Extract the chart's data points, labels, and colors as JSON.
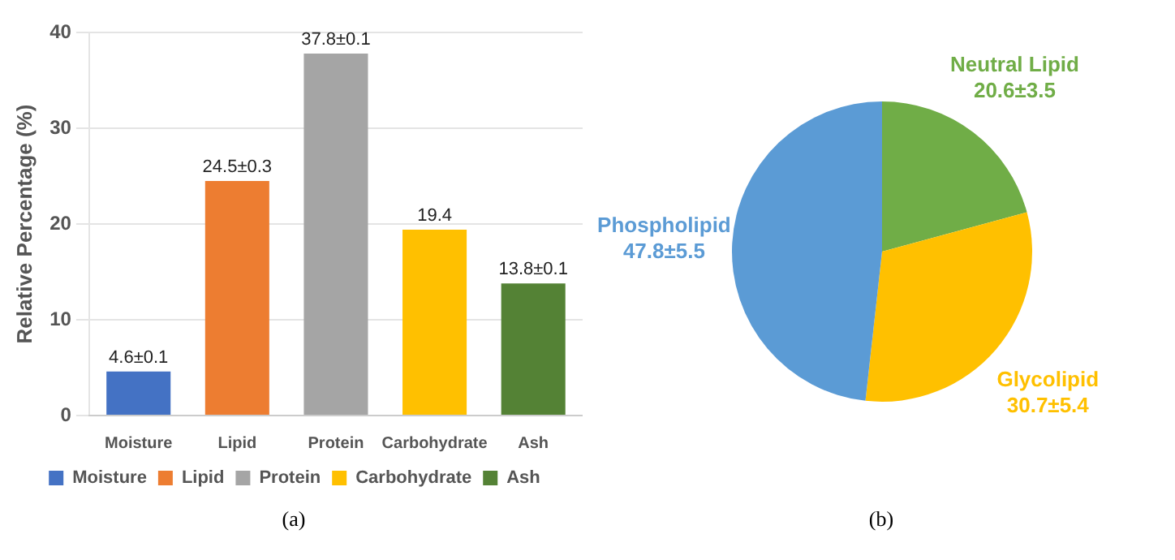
{
  "chart_data": [
    {
      "type": "bar",
      "ylabel": "Relative Percentage (%)",
      "categories": [
        "Moisture",
        "Lipid",
        "Protein",
        "Carbohydrate",
        "Ash"
      ],
      "series": [
        {
          "name": "Moisture",
          "color": "#4472c4",
          "values": [
            4.6,
            null,
            null,
            null,
            null
          ],
          "value_labels": [
            "4.6±0.1",
            null,
            null,
            null,
            null
          ]
        },
        {
          "name": "Lipid",
          "color": "#ed7d31",
          "values": [
            null,
            24.5,
            null,
            null,
            null
          ],
          "value_labels": [
            null,
            "24.5±0.3",
            null,
            null,
            null
          ]
        },
        {
          "name": "Protein",
          "color": "#a5a5a5",
          "values": [
            null,
            null,
            37.8,
            null,
            null
          ],
          "value_labels": [
            null,
            null,
            "37.8±0.1",
            null,
            null
          ]
        },
        {
          "name": "Carbohydrate",
          "color": "#ffc000",
          "values": [
            null,
            null,
            null,
            19.4,
            null
          ],
          "value_labels": [
            null,
            null,
            null,
            "19.4",
            null
          ]
        },
        {
          "name": "Ash",
          "color": "#548235",
          "values": [
            null,
            null,
            null,
            null,
            13.8
          ],
          "value_labels": [
            null,
            null,
            null,
            null,
            "13.8±0.1"
          ]
        }
      ],
      "ylim": [
        0,
        40
      ],
      "yticks": [
        0,
        10,
        20,
        30,
        40
      ],
      "grid": "y",
      "legend": "bottom",
      "annotations": [
        "(a)"
      ]
    },
    {
      "type": "pie",
      "categories": [
        "Neutral Lipid",
        "Glycolipid",
        "Phospholipid"
      ],
      "values": [
        20.6,
        30.7,
        47.8
      ],
      "colors": [
        "#70ad47",
        "#ffc000",
        "#5b9bd5"
      ],
      "value_labels": [
        "20.6±3.5",
        "30.7±5.4",
        "47.8±5.5"
      ],
      "legend": false,
      "annotations": [
        "(b)"
      ]
    }
  ]
}
